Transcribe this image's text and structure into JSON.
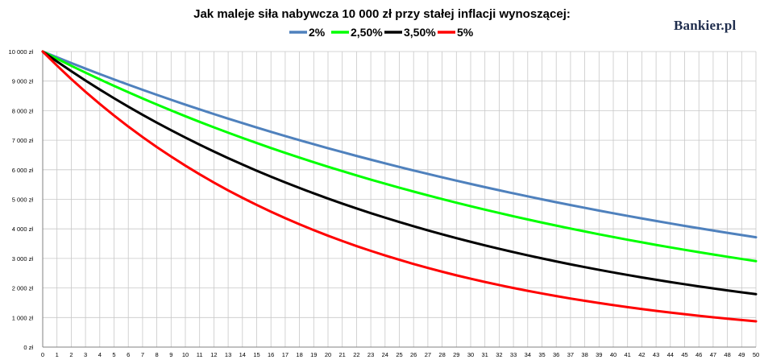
{
  "brand": "Bankier.pl",
  "chart_data": {
    "type": "line",
    "title": "Jak maleje siła nabywcza 10 000 zł przy stałej inflacji wynoszącej:",
    "xlabel": "",
    "ylabel": "",
    "x": [
      0,
      1,
      2,
      3,
      4,
      5,
      6,
      7,
      8,
      9,
      10,
      11,
      12,
      13,
      14,
      15,
      16,
      17,
      18,
      19,
      20,
      21,
      22,
      23,
      24,
      25,
      26,
      27,
      28,
      29,
      30,
      31,
      32,
      33,
      34,
      35,
      36,
      37,
      38,
      39,
      40,
      41,
      42,
      43,
      44,
      45,
      46,
      47,
      48,
      49,
      50
    ],
    "xlim": [
      0,
      50
    ],
    "ylim": [
      0,
      10000
    ],
    "y_ticks": [
      0,
      1000,
      2000,
      3000,
      4000,
      5000,
      6000,
      7000,
      8000,
      9000,
      10000
    ],
    "y_tick_labels": [
      "0 zł",
      "1 000 zł",
      "2 000 zł",
      "3 000 zł",
      "4 000 zł",
      "5 000 zł",
      "6 000 zł",
      "7 000 zł",
      "8 000 zł",
      "9 000 zł",
      "10 000 zł"
    ],
    "grid": true,
    "legend_position": "top",
    "series": [
      {
        "name": "2%",
        "color": "#4f81bd",
        "values": [
          10000,
          9804,
          9612,
          9423,
          9238,
          9057,
          8880,
          8706,
          8535,
          8368,
          8203,
          8043,
          7885,
          7730,
          7579,
          7430,
          7284,
          7142,
          7002,
          6864,
          6730,
          6598,
          6468,
          6342,
          6217,
          6095,
          5976,
          5859,
          5744,
          5631,
          5521,
          5412,
          5306,
          5202,
          5100,
          5000,
          4902,
          4806,
          4712,
          4619,
          4529,
          4440,
          4353,
          4268,
          4184,
          4102,
          4022,
          3943,
          3865,
          3790,
          3715
        ]
      },
      {
        "name": "2,50%",
        "color": "#00ff00",
        "values": [
          10000,
          9756,
          9518,
          9286,
          9060,
          8839,
          8623,
          8413,
          8207,
          8007,
          7812,
          7621,
          7436,
          7254,
          7077,
          6905,
          6736,
          6572,
          6412,
          6255,
          6103,
          5954,
          5809,
          5667,
          5529,
          5394,
          5262,
          5134,
          5009,
          4887,
          4767,
          4651,
          4538,
          4427,
          4319,
          4214,
          4111,
          4011,
          3913,
          3817,
          3724,
          3633,
          3545,
          3458,
          3374,
          3292,
          3211,
          3133,
          3057,
          2982,
          2909
        ]
      },
      {
        "name": "3,50%",
        "color": "#000000",
        "values": [
          10000,
          9662,
          9335,
          9019,
          8714,
          8420,
          8135,
          7860,
          7594,
          7337,
          7089,
          6849,
          6618,
          6394,
          6178,
          5969,
          5767,
          5572,
          5384,
          5202,
          5026,
          4856,
          4692,
          4533,
          4380,
          4231,
          4088,
          3950,
          3817,
          3687,
          3563,
          3442,
          3326,
          3213,
          3105,
          3000,
          2898,
          2800,
          2706,
          2614,
          2526,
          2440,
          2358,
          2278,
          2201,
          2127,
          2055,
          1985,
          1918,
          1853,
          1791
        ]
      },
      {
        "name": "5%",
        "color": "#ff0000",
        "values": [
          10000,
          9524,
          9070,
          8638,
          8227,
          7835,
          7462,
          7107,
          6768,
          6446,
          6139,
          5847,
          5568,
          5303,
          5051,
          4810,
          4581,
          4363,
          4155,
          3957,
          3769,
          3589,
          3418,
          3256,
          3101,
          2953,
          2812,
          2678,
          2551,
          2429,
          2314,
          2204,
          2099,
          1999,
          1904,
          1813,
          1727,
          1644,
          1566,
          1491,
          1420,
          1353,
          1288,
          1227,
          1169,
          1113,
          1060,
          1009,
          961,
          916,
          872
        ]
      }
    ]
  }
}
